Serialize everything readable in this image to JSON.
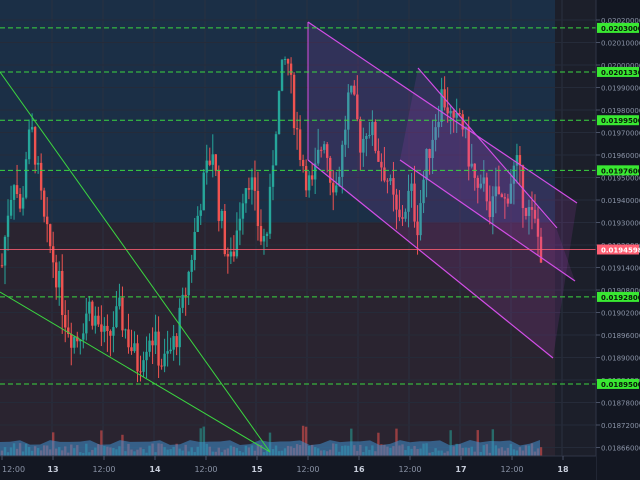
{
  "colors": {
    "background": "#131722",
    "upper_zone": "#1b2f46",
    "lower_zone": "#2a2430",
    "future_zone": "#1c1f2a",
    "up_candle": "#26a69a",
    "down_candle": "#ef5350",
    "level_line": "#3bd640",
    "level_label_bg": "#39e832",
    "current_price_bg": "#ff5f73",
    "channel": "#d24ee6",
    "trendline": "#3bd640",
    "axis_text": "#8a93a6",
    "volume": "#3f8fd0"
  },
  "chart_data": {
    "type": "candlestick",
    "title": "",
    "xlabel": "",
    "ylabel": "",
    "ylim": [
      0.018654,
      0.02033
    ],
    "x_tick_labels": [
      "12:00",
      "13",
      "12:00",
      "14",
      "12:00",
      "15",
      "12:00",
      "16",
      "12:00",
      "17",
      "12:00",
      "18"
    ],
    "y_tick_labels": [
      "0.02020000",
      "0.02010000",
      "0.02000000",
      "0.01990000",
      "0.01980000",
      "0.01970000",
      "0.01960000",
      "0.01950000",
      "0.01940000",
      "0.01930000",
      "0.01920000",
      "0.01914000",
      "0.01908000",
      "0.01902000",
      "0.01896000",
      "0.01890000",
      "0.01884000",
      "0.01878000",
      "0.01872000",
      "0.01866000"
    ],
    "horizontal_levels": [
      "0.02030000",
      "0.02013300",
      "0.01995000",
      "0.01976000",
      "0.01928000",
      "0.01895000"
    ],
    "current_price": "0.01945982",
    "zone_split_price": 0.01956,
    "price_path": [
      0.0194,
      0.01962,
      0.01975,
      0.01958,
      0.01985,
      0.0199,
      0.0197,
      0.01952,
      0.01945,
      0.01935,
      0.01922,
      0.01915,
      0.01912,
      0.01918,
      0.01925,
      0.0192,
      0.01915,
      0.0191,
      0.01918,
      0.01922,
      0.01915,
      0.01908,
      0.01902,
      0.0191,
      0.01915,
      0.01908,
      0.01902,
      0.01906,
      0.01912,
      0.01922,
      0.01935,
      0.0195,
      0.01965,
      0.01975,
      0.01985,
      0.01962,
      0.01948,
      0.0194,
      0.01955,
      0.0197,
      0.01975,
      0.0196,
      0.01948,
      0.01955,
      0.0199,
      0.0201,
      0.0202,
      0.02,
      0.01985,
      0.01975,
      0.01968,
      0.0198,
      0.0199,
      0.01975,
      0.0197,
      0.01985,
      0.02005,
      0.01998,
      0.01985,
      0.01995,
      0.01988,
      0.0198,
      0.01975,
      0.01965,
      0.01955,
      0.01962,
      0.01968,
      0.01955,
      0.01972,
      0.01985,
      0.01995,
      0.02005,
      0.02,
      0.0199,
      0.01998,
      0.01985,
      0.01975,
      0.01965,
      0.0197,
      0.0196,
      0.01968,
      0.01962,
      0.01972,
      0.01978,
      0.01968,
      0.0196,
      0.01955,
      0.01945982
    ]
  },
  "x_tick_bold": [
    false,
    true,
    false,
    true,
    false,
    true,
    false,
    true,
    false,
    true,
    false,
    true
  ]
}
